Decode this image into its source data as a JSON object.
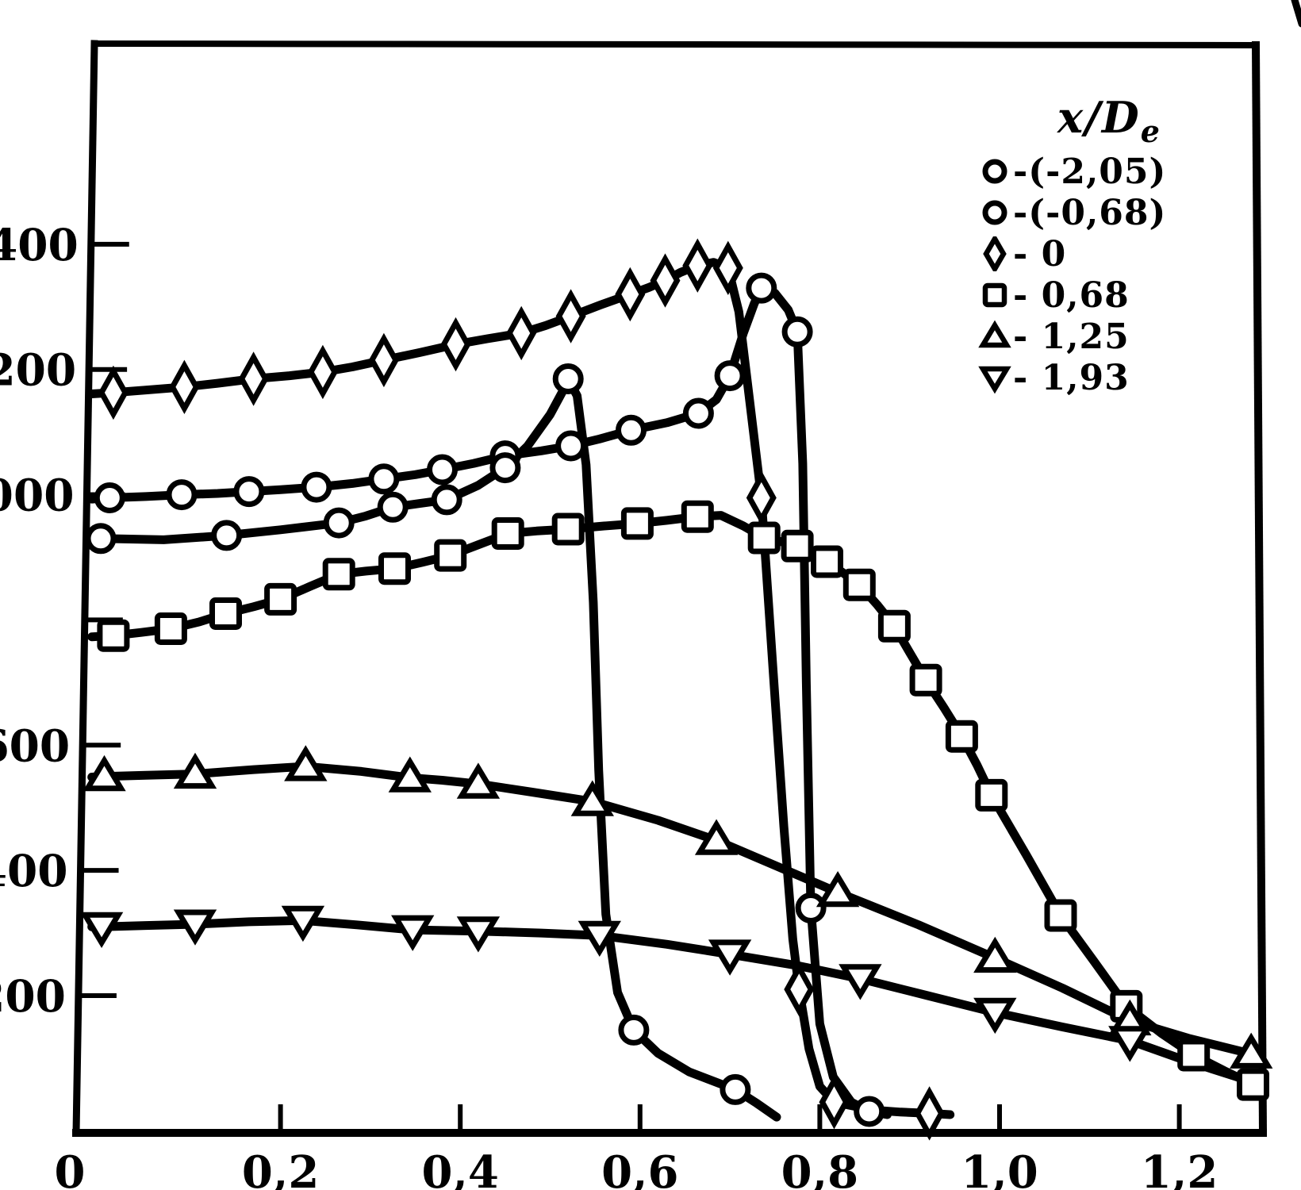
{
  "chart_data": {
    "type": "line",
    "background": "#ffffff",
    "ink_color": "#000000",
    "decimal_style": "comma",
    "x_axis": {
      "range": [
        0,
        1.3
      ],
      "ticks": [
        {
          "v": 0,
          "label": "0",
          "tick": false
        },
        {
          "v": 0.2,
          "label": "0,2",
          "tick": true
        },
        {
          "v": 0.4,
          "label": "0,4",
          "tick": true
        },
        {
          "v": 0.6,
          "label": "0,6",
          "tick": true
        },
        {
          "v": 0.8,
          "label": "0,8",
          "tick": true
        },
        {
          "v": 1.0,
          "label": "1,0",
          "tick": true
        },
        {
          "v": 1.2,
          "label": "1,2",
          "tick": true
        }
      ]
    },
    "y_axis": {
      "range": [
        0,
        1730
      ],
      "note": "left digits of upper labels are cut off by the scan: 1400 shows as 400, 1200 as 200, 1000 as 000; 800 tick has no visible label",
      "ticks": [
        {
          "v": 1400,
          "label": "400"
        },
        {
          "v": 1200,
          "label": "200"
        },
        {
          "v": 1000,
          "label": "000"
        },
        {
          "v": 800,
          "label": ""
        },
        {
          "v": 600,
          "label": "600"
        },
        {
          "v": 400,
          "label": "400"
        },
        {
          "v": 200,
          "label": "200"
        }
      ]
    },
    "legend": {
      "title": "x/De",
      "title_main": "x/D",
      "title_sub": "e",
      "entries": [
        {
          "marker": "circle",
          "text": "-(-2,05)"
        },
        {
          "marker": "circle",
          "text": "-(-0,68)"
        },
        {
          "marker": "diamond",
          "text": "- 0"
        },
        {
          "marker": "square",
          "text": "- 0,68"
        },
        {
          "marker": "triangle-up",
          "text": "- 1,25"
        },
        {
          "marker": "triangle-down",
          "text": "- 1,93"
        }
      ]
    },
    "series": [
      {
        "id": "neg2-05",
        "label": "(-2,05)",
        "marker": "circle",
        "points": [
          [
            0.01,
            995
          ],
          [
            0.09,
            1000
          ],
          [
            0.165,
            1005
          ],
          [
            0.24,
            1012
          ],
          [
            0.315,
            1025
          ],
          [
            0.38,
            1040
          ],
          [
            0.45,
            1062
          ],
          [
            0.523,
            1078
          ],
          [
            0.59,
            1103
          ],
          [
            0.665,
            1130
          ],
          [
            0.7,
            1190
          ],
          [
            0.735,
            1330
          ],
          [
            0.775,
            1260
          ],
          [
            0.79,
            340
          ],
          [
            0.855,
            15
          ]
        ],
        "path": [
          [
            -0.01,
            993
          ],
          [
            0.01,
            995
          ],
          [
            0.05,
            997
          ],
          [
            0.09,
            1000
          ],
          [
            0.13,
            1002
          ],
          [
            0.165,
            1005
          ],
          [
            0.2,
            1008
          ],
          [
            0.24,
            1012
          ],
          [
            0.28,
            1018
          ],
          [
            0.315,
            1025
          ],
          [
            0.35,
            1032
          ],
          [
            0.38,
            1040
          ],
          [
            0.415,
            1050
          ],
          [
            0.45,
            1062
          ],
          [
            0.49,
            1070
          ],
          [
            0.523,
            1078
          ],
          [
            0.555,
            1089
          ],
          [
            0.59,
            1103
          ],
          [
            0.63,
            1115
          ],
          [
            0.665,
            1130
          ],
          [
            0.685,
            1152
          ],
          [
            0.7,
            1190
          ],
          [
            0.715,
            1258
          ],
          [
            0.727,
            1305
          ],
          [
            0.735,
            1330
          ],
          [
            0.75,
            1322
          ],
          [
            0.765,
            1295
          ],
          [
            0.775,
            1260
          ],
          [
            0.781,
            1050
          ],
          [
            0.785,
            700
          ],
          [
            0.79,
            340
          ],
          [
            0.8,
            155
          ],
          [
            0.815,
            70
          ],
          [
            0.835,
            30
          ],
          [
            0.855,
            15
          ],
          [
            0.875,
            10
          ]
        ]
      },
      {
        "id": "neg0-68",
        "label": "(-0,68)",
        "marker": "circle",
        "points": [
          [
            0,
            930
          ],
          [
            0.14,
            935
          ],
          [
            0.265,
            955
          ],
          [
            0.325,
            980
          ],
          [
            0.385,
            992
          ],
          [
            0.45,
            1043
          ],
          [
            0.52,
            1185
          ],
          [
            0.593,
            145
          ],
          [
            0.706,
            50
          ]
        ],
        "path": [
          [
            -0.01,
            930
          ],
          [
            0,
            930
          ],
          [
            0.07,
            928
          ],
          [
            0.14,
            935
          ],
          [
            0.2,
            944
          ],
          [
            0.265,
            955
          ],
          [
            0.295,
            966
          ],
          [
            0.325,
            980
          ],
          [
            0.355,
            986
          ],
          [
            0.385,
            992
          ],
          [
            0.42,
            1015
          ],
          [
            0.45,
            1043
          ],
          [
            0.475,
            1078
          ],
          [
            0.5,
            1128
          ],
          [
            0.515,
            1168
          ],
          [
            0.52,
            1185
          ],
          [
            0.53,
            1158
          ],
          [
            0.54,
            1048
          ],
          [
            0.548,
            828
          ],
          [
            0.554,
            560
          ],
          [
            0.562,
            330
          ],
          [
            0.575,
            205
          ],
          [
            0.593,
            145
          ],
          [
            0.62,
            108
          ],
          [
            0.655,
            78
          ],
          [
            0.706,
            50
          ],
          [
            0.73,
            28
          ],
          [
            0.752,
            6
          ]
        ]
      },
      {
        "id": "0",
        "label": "0",
        "marker": "diamond",
        "points": [
          [
            0.014,
            1163
          ],
          [
            0.093,
            1172
          ],
          [
            0.17,
            1185
          ],
          [
            0.247,
            1196
          ],
          [
            0.315,
            1215
          ],
          [
            0.395,
            1240
          ],
          [
            0.468,
            1258
          ],
          [
            0.523,
            1285
          ],
          [
            0.589,
            1320
          ],
          [
            0.628,
            1342
          ],
          [
            0.664,
            1366
          ],
          [
            0.698,
            1362
          ],
          [
            0.735,
            995
          ],
          [
            0.777,
            210
          ],
          [
            0.816,
            30
          ],
          [
            0.922,
            12
          ]
        ],
        "path": [
          [
            -0.01,
            1161
          ],
          [
            0.014,
            1163
          ],
          [
            0.05,
            1167
          ],
          [
            0.093,
            1172
          ],
          [
            0.13,
            1178
          ],
          [
            0.17,
            1185
          ],
          [
            0.21,
            1190
          ],
          [
            0.247,
            1196
          ],
          [
            0.28,
            1204
          ],
          [
            0.315,
            1215
          ],
          [
            0.355,
            1227
          ],
          [
            0.395,
            1240
          ],
          [
            0.43,
            1249
          ],
          [
            0.468,
            1258
          ],
          [
            0.495,
            1270
          ],
          [
            0.523,
            1285
          ],
          [
            0.556,
            1303
          ],
          [
            0.589,
            1320
          ],
          [
            0.61,
            1331
          ],
          [
            0.628,
            1342
          ],
          [
            0.645,
            1355
          ],
          [
            0.664,
            1366
          ],
          [
            0.682,
            1371
          ],
          [
            0.698,
            1362
          ],
          [
            0.71,
            1292
          ],
          [
            0.722,
            1150
          ],
          [
            0.735,
            995
          ],
          [
            0.748,
            720
          ],
          [
            0.76,
            470
          ],
          [
            0.77,
            290
          ],
          [
            0.777,
            210
          ],
          [
            0.788,
            115
          ],
          [
            0.8,
            55
          ],
          [
            0.816,
            30
          ],
          [
            0.86,
            17
          ],
          [
            0.89,
            14
          ],
          [
            0.922,
            12
          ],
          [
            0.945,
            10
          ]
        ]
      },
      {
        "id": "0-68",
        "label": "0,68",
        "marker": "square",
        "points": [
          [
            0.014,
            775
          ],
          [
            0.078,
            786
          ],
          [
            0.139,
            810
          ],
          [
            0.2,
            833
          ],
          [
            0.265,
            873
          ],
          [
            0.327,
            882
          ],
          [
            0.389,
            903
          ],
          [
            0.453,
            938
          ],
          [
            0.52,
            945
          ],
          [
            0.597,
            954
          ],
          [
            0.664,
            965
          ],
          [
            0.738,
            931
          ],
          [
            0.775,
            918
          ],
          [
            0.808,
            893
          ],
          [
            0.844,
            856
          ],
          [
            0.883,
            790
          ],
          [
            0.918,
            704
          ],
          [
            0.958,
            614
          ],
          [
            0.991,
            520
          ],
          [
            1.068,
            328
          ],
          [
            1.141,
            183
          ],
          [
            1.216,
            105
          ],
          [
            1.282,
            58
          ]
        ],
        "path": [
          [
            -0.01,
            773
          ],
          [
            0.014,
            775
          ],
          [
            0.045,
            780
          ],
          [
            0.078,
            786
          ],
          [
            0.11,
            797
          ],
          [
            0.139,
            810
          ],
          [
            0.17,
            821
          ],
          [
            0.2,
            833
          ],
          [
            0.232,
            853
          ],
          [
            0.265,
            873
          ],
          [
            0.295,
            878
          ],
          [
            0.327,
            882
          ],
          [
            0.358,
            892
          ],
          [
            0.389,
            903
          ],
          [
            0.42,
            920
          ],
          [
            0.453,
            938
          ],
          [
            0.485,
            942
          ],
          [
            0.52,
            945
          ],
          [
            0.56,
            950
          ],
          [
            0.597,
            954
          ],
          [
            0.63,
            959
          ],
          [
            0.664,
            965
          ],
          [
            0.69,
            967
          ],
          [
            0.715,
            950
          ],
          [
            0.738,
            931
          ],
          [
            0.757,
            925
          ],
          [
            0.775,
            918
          ],
          [
            0.79,
            906
          ],
          [
            0.808,
            893
          ],
          [
            0.826,
            875
          ],
          [
            0.844,
            856
          ],
          [
            0.864,
            824
          ],
          [
            0.883,
            790
          ],
          [
            0.9,
            748
          ],
          [
            0.918,
            704
          ],
          [
            0.938,
            660
          ],
          [
            0.958,
            614
          ],
          [
            0.975,
            568
          ],
          [
            0.991,
            520
          ],
          [
            1.03,
            424
          ],
          [
            1.068,
            328
          ],
          [
            1.105,
            255
          ],
          [
            1.141,
            183
          ],
          [
            1.18,
            140
          ],
          [
            1.216,
            105
          ],
          [
            1.25,
            80
          ],
          [
            1.282,
            58
          ]
        ]
      },
      {
        "id": "1-25",
        "label": "1,25",
        "marker": "triangle-up",
        "points": [
          [
            0.004,
            550
          ],
          [
            0.105,
            554
          ],
          [
            0.228,
            566
          ],
          [
            0.344,
            548
          ],
          [
            0.42,
            538
          ],
          [
            0.547,
            510
          ],
          [
            0.685,
            448
          ],
          [
            0.82,
            365
          ],
          [
            0.995,
            260
          ],
          [
            1.145,
            160
          ],
          [
            1.28,
            107
          ]
        ],
        "path": [
          [
            -0.01,
            549
          ],
          [
            0.004,
            550
          ],
          [
            0.05,
            552
          ],
          [
            0.105,
            554
          ],
          [
            0.17,
            561
          ],
          [
            0.228,
            566
          ],
          [
            0.29,
            558
          ],
          [
            0.344,
            548
          ],
          [
            0.38,
            544
          ],
          [
            0.42,
            538
          ],
          [
            0.48,
            525
          ],
          [
            0.547,
            510
          ],
          [
            0.62,
            480
          ],
          [
            0.685,
            448
          ],
          [
            0.75,
            408
          ],
          [
            0.82,
            365
          ],
          [
            0.91,
            313
          ],
          [
            0.995,
            260
          ],
          [
            1.07,
            212
          ],
          [
            1.145,
            160
          ],
          [
            1.21,
            132
          ],
          [
            1.28,
            107
          ]
        ]
      },
      {
        "id": "1-93",
        "label": "1,93",
        "marker": "triangle-down",
        "points": [
          [
            0.001,
            310
          ],
          [
            0.105,
            314
          ],
          [
            0.225,
            320
          ],
          [
            0.347,
            305
          ],
          [
            0.42,
            303
          ],
          [
            0.555,
            296
          ],
          [
            0.7,
            266
          ],
          [
            0.845,
            227
          ],
          [
            0.995,
            173
          ],
          [
            1.145,
            128
          ]
        ],
        "path": [
          [
            -0.01,
            310
          ],
          [
            0.001,
            310
          ],
          [
            0.05,
            312
          ],
          [
            0.105,
            314
          ],
          [
            0.165,
            318
          ],
          [
            0.225,
            320
          ],
          [
            0.285,
            313
          ],
          [
            0.347,
            305
          ],
          [
            0.42,
            303
          ],
          [
            0.49,
            300
          ],
          [
            0.555,
            296
          ],
          [
            0.63,
            282
          ],
          [
            0.7,
            266
          ],
          [
            0.775,
            248
          ],
          [
            0.845,
            227
          ],
          [
            0.92,
            200
          ],
          [
            0.995,
            173
          ],
          [
            1.07,
            150
          ],
          [
            1.145,
            128
          ],
          [
            1.21,
            95
          ],
          [
            1.282,
            62
          ]
        ]
      }
    ]
  }
}
